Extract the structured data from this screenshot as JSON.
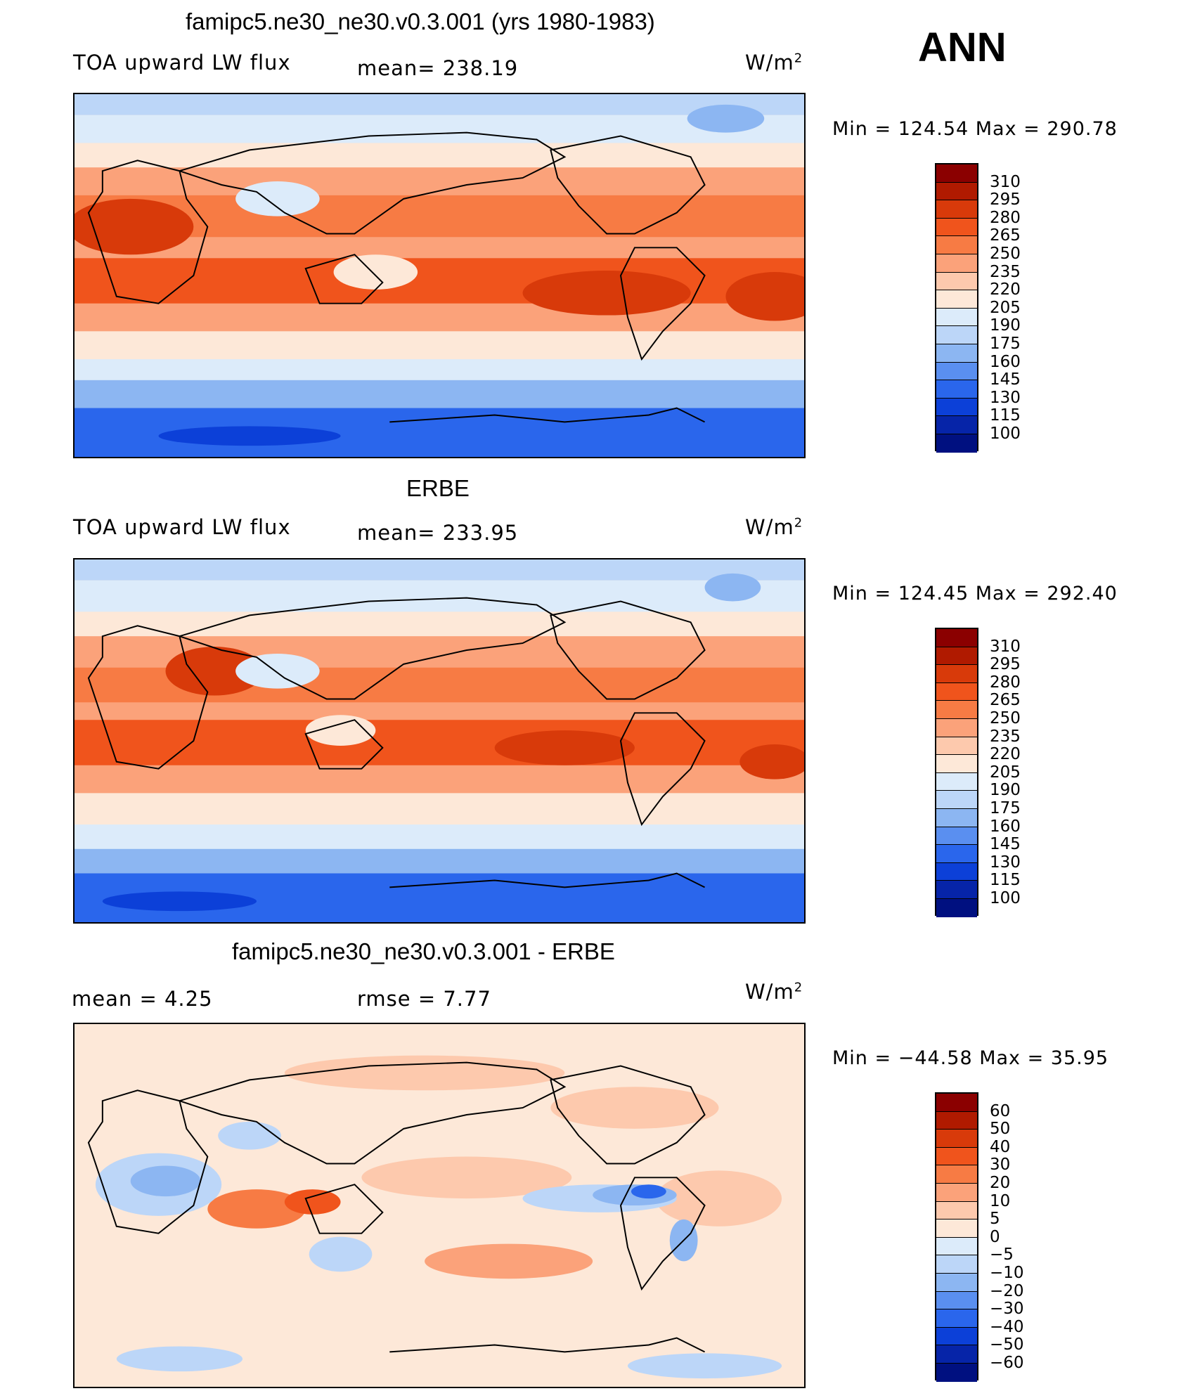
{
  "ann": "ANN",
  "units": "W/m",
  "units_sup": "2",
  "panels": [
    {
      "title": "famipc5.ne30_ne30.v0.3.001 (yrs 1980-1983)",
      "left_label": "TOA upward LW flux",
      "mid_label": "mean=  238.19",
      "minmax": "Min  =  124.54  Max  =  290.78"
    },
    {
      "title": "ERBE",
      "left_label": "TOA upward LW flux",
      "mid_label": "mean=  233.95",
      "minmax": "Min  =  124.45  Max  =  292.40"
    },
    {
      "title": "famipc5.ne30_ne30.v0.3.001 - ERBE",
      "left_label": "mean =      4.25",
      "mid_label": "rmse  =      7.77",
      "minmax": "Min  = −44.58  Max  =    35.95"
    }
  ],
  "colorbar_abs": {
    "ticks": [
      "310",
      "295",
      "280",
      "265",
      "250",
      "235",
      "220",
      "205",
      "190",
      "175",
      "160",
      "145",
      "130",
      "115",
      "100"
    ],
    "colors": [
      "#8b0000",
      "#b01a00",
      "#d83a0a",
      "#f0541c",
      "#f77b44",
      "#fba27a",
      "#fdc9ad",
      "#fde8d8",
      "#dcebfa",
      "#bcd6f8",
      "#8cb6f2",
      "#5a8ff0",
      "#2a66ec",
      "#0c40d8",
      "#0624a8",
      "#001080"
    ]
  },
  "colorbar_diff": {
    "ticks": [
      "60",
      "50",
      "40",
      "30",
      "20",
      "10",
      "5",
      "0",
      "−5",
      "−10",
      "−20",
      "−30",
      "−40",
      "−50",
      "−60"
    ],
    "colors": [
      "#8b0000",
      "#b01a00",
      "#d83a0a",
      "#f0541c",
      "#f77b44",
      "#fba27a",
      "#fdc9ad",
      "#fde8d8",
      "#dcebfa",
      "#bcd6f8",
      "#8cb6f2",
      "#5a8ff0",
      "#2a66ec",
      "#0c40d8",
      "#0624a8",
      "#001080"
    ]
  }
}
